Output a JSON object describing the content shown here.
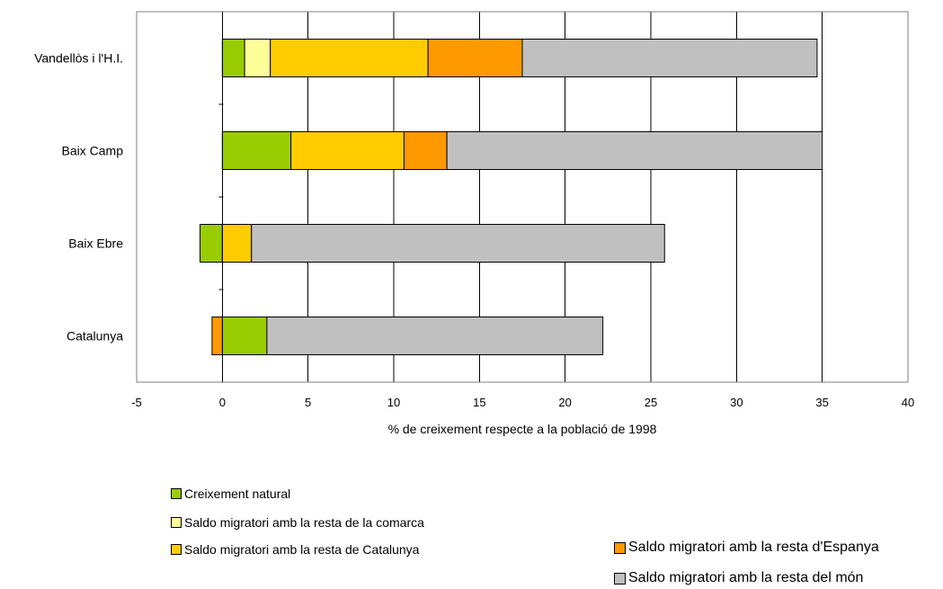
{
  "chart_data": {
    "type": "bar",
    "orientation": "horizontal",
    "stacked": true,
    "title": "",
    "xlabel": "% de creixement respecte a la població de 1998",
    "ylabel": "",
    "xlim": [
      -5,
      40
    ],
    "xticks": [
      -5,
      0,
      5,
      10,
      15,
      20,
      25,
      30,
      35,
      40
    ],
    "grid": true,
    "legend_position": "bottom",
    "categories": [
      "Vandellòs i l'H.I.",
      "Baix Camp",
      "Baix Ebre",
      "Catalunya"
    ],
    "series": [
      {
        "name": "Creixement natural",
        "color": "#99cc00",
        "values": [
          1.3,
          4.0,
          -1.3,
          2.6
        ]
      },
      {
        "name": "Saldo migratori amb la resta de la comarca",
        "color": "#ffff99",
        "values": [
          1.5,
          0,
          0,
          0
        ]
      },
      {
        "name": "Saldo migratori amb la resta de Catalunya",
        "color": "#ffcc00",
        "values": [
          9.2,
          6.6,
          1.7,
          0
        ]
      },
      {
        "name": "Saldo migratori amb la resta d'Espanya",
        "color": "#ff9900",
        "values": [
          5.5,
          2.5,
          0,
          -0.6
        ]
      },
      {
        "name": "Saldo migratori amb la resta del món",
        "color": "#c0c0c0",
        "values": [
          17.2,
          21.9,
          24.1,
          19.6
        ]
      }
    ]
  }
}
